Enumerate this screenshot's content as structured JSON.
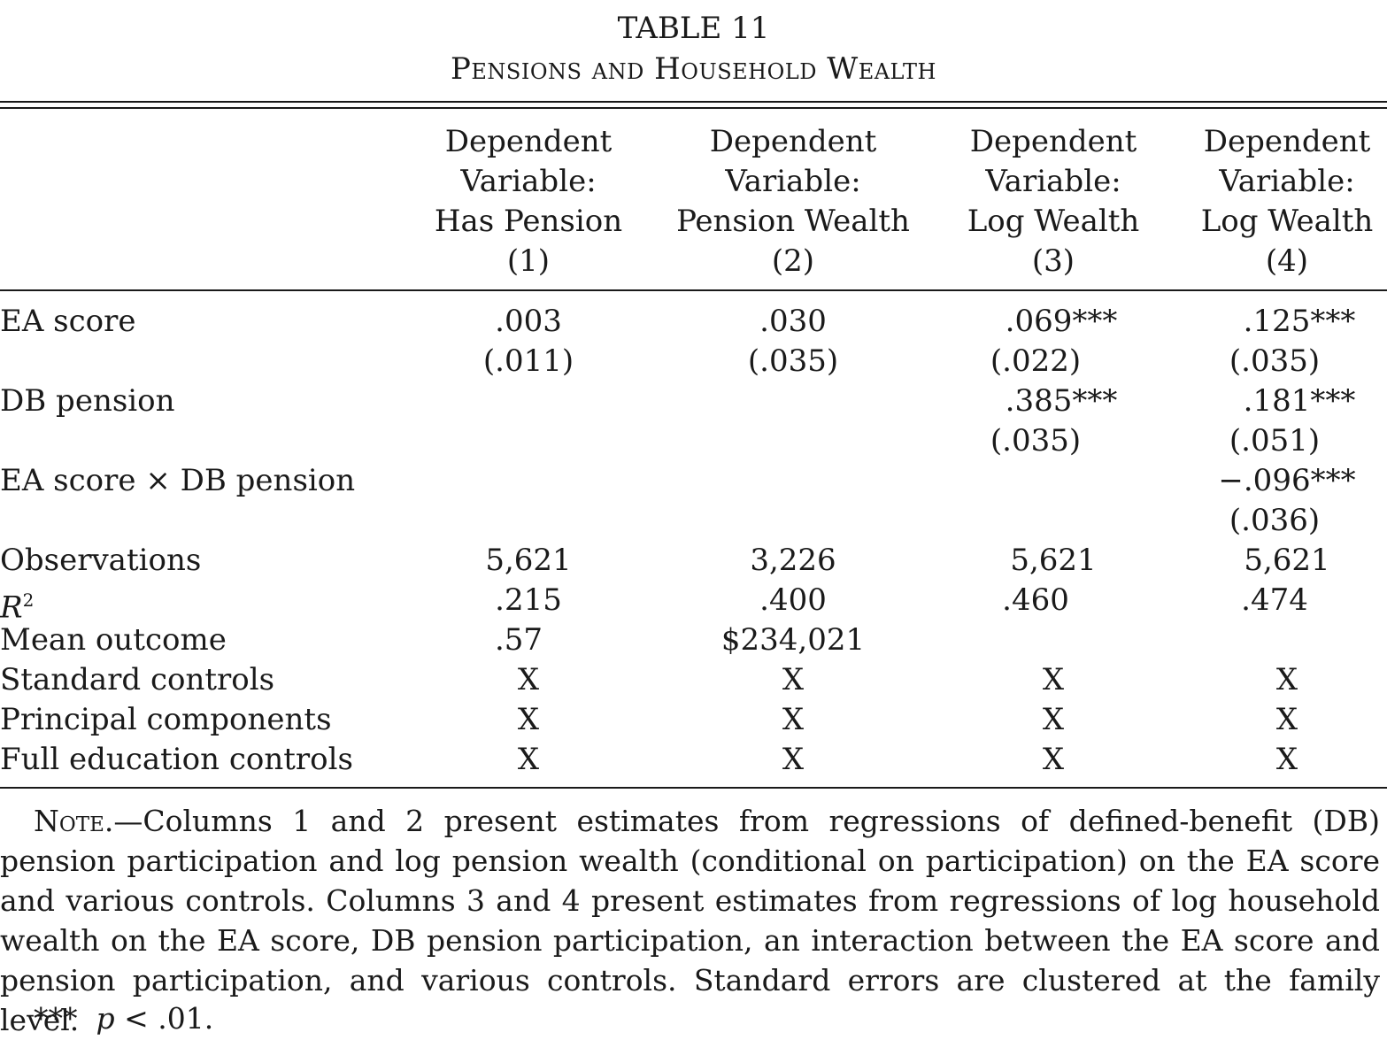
{
  "table": {
    "number": "TABLE 11",
    "caption": "Pensions and Household Wealth",
    "columns": [
      {
        "line1": "Dependent",
        "line2": "Variable:",
        "line3": "Has Pension",
        "index": "(1)"
      },
      {
        "line1": "Dependent",
        "line2": "Variable:",
        "line3": "Pension Wealth",
        "index": "(2)"
      },
      {
        "line1": "Dependent",
        "line2": "Variable:",
        "line3": "Log Wealth",
        "index": "(3)"
      },
      {
        "line1": "Dependent",
        "line2": "Variable:",
        "line3": "Log Wealth",
        "index": "(4)"
      }
    ],
    "rows": {
      "ea_score": {
        "label": "EA score",
        "coef": [
          ".003",
          ".030",
          ".069***",
          ".125***"
        ],
        "se": [
          "(.011)",
          "(.035)",
          "(.022)",
          "(.035)"
        ]
      },
      "db_pension": {
        "label": "DB pension",
        "coef": [
          "",
          "",
          ".385***",
          ".181***"
        ],
        "se": [
          "",
          "",
          "(.035)",
          "(.051)"
        ]
      },
      "interaction": {
        "label": "EA score × DB pension",
        "coef": [
          "",
          "",
          "",
          "−.096***"
        ],
        "se": [
          "",
          "",
          "",
          "(.036)"
        ]
      },
      "observations": {
        "label": "Observations",
        "values": [
          "5,621",
          "3,226",
          "5,621",
          "5,621"
        ]
      },
      "r2": {
        "label": "R",
        "sup": "2",
        "values": [
          ".215",
          ".400",
          ".460",
          ".474"
        ]
      },
      "mean_outcome": {
        "label": "Mean outcome",
        "values": [
          ".57",
          "$234,021",
          "",
          ""
        ]
      },
      "standard_controls": {
        "label": "Standard controls",
        "values": [
          "X",
          "X",
          "X",
          "X"
        ]
      },
      "principal_components": {
        "label": "Principal components",
        "values": [
          "X",
          "X",
          "X",
          "X"
        ]
      },
      "full_education_controls": {
        "label": "Full education controls",
        "values": [
          "X",
          "X",
          "X",
          "X"
        ]
      }
    },
    "note": {
      "lead": "Note.",
      "text": "—Columns 1 and 2 present estimates from regressions of defined-benefit (DB) pension participation and log pension wealth (conditional on participation) on the EA score and various controls. Columns 3 and 4 present estimates from regressions of log household wealth on the EA score, DB pension participation, an interaction between the EA score and pension participation, and various controls. Standard errors are clustered at the family level."
    },
    "footnote": {
      "stars": "***",
      "p": "p",
      "rest": " < .01."
    }
  }
}
